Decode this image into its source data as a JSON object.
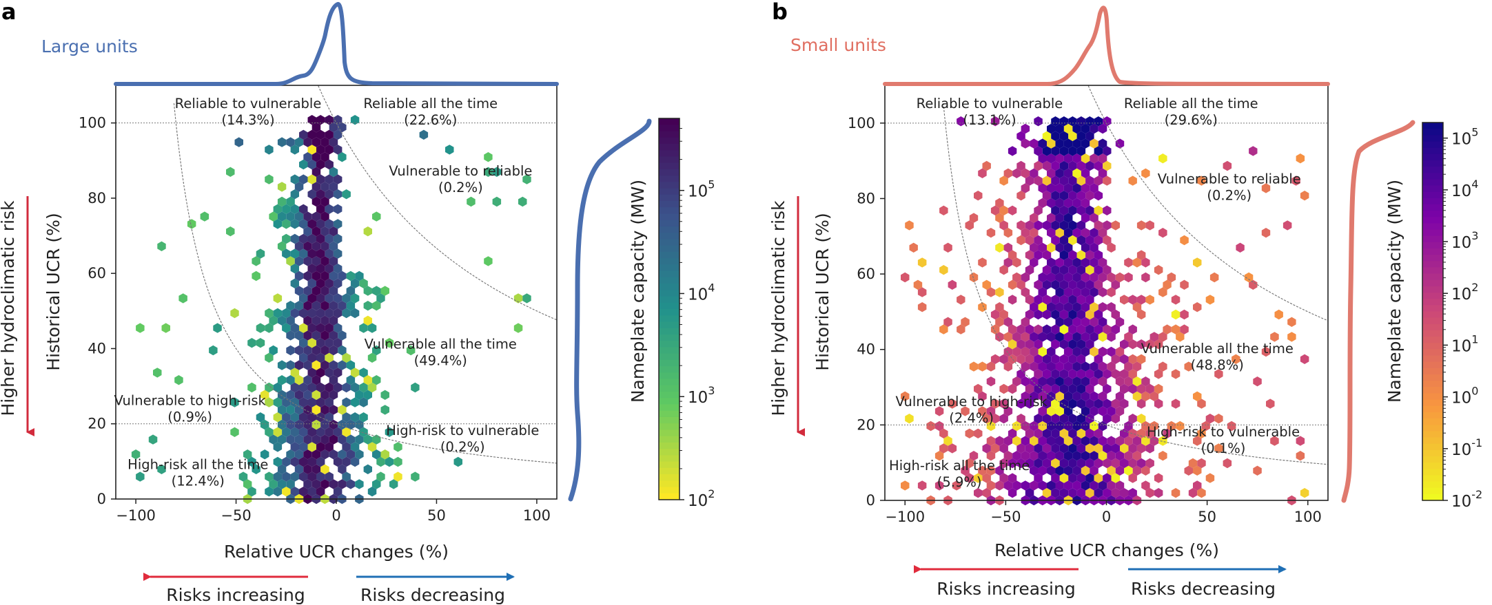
{
  "figure": {
    "panels": [
      {
        "letter": "a",
        "title": "Large units",
        "title_color": "#4a6fb0",
        "kde_color": "#4a6fb0",
        "colormap": "viridis"
      },
      {
        "letter": "b",
        "title": "Small units",
        "title_color": "#e06e60",
        "kde_color": "#e07a6e",
        "colormap": "plasma"
      }
    ],
    "side_label": "Higher hydroclimatic risk",
    "side_color": "#d22b3c",
    "arrow_left_label": "Risks increasing",
    "arrow_left_color": "#e02b3c",
    "arrow_right_label": "Risks decreasing",
    "arrow_right_color": "#1f6fb5"
  },
  "chart_data": [
    {
      "type": "hexbin",
      "title": "Large units",
      "xlabel": "Relative UCR changes (%)",
      "ylabel": "Historical UCR (%)",
      "xlim": [
        -110,
        110
      ],
      "ylim": [
        0,
        110
      ],
      "xticks": [
        -100,
        -50,
        0,
        50,
        100
      ],
      "yticks": [
        0,
        20,
        40,
        60,
        80,
        100
      ],
      "xtick_labels": [
        "−100",
        "−50",
        "0",
        "50",
        "100"
      ],
      "ytick_labels": [
        "0",
        "20",
        "40",
        "60",
        "80",
        "100"
      ],
      "colorbar": {
        "label": "Nameplate capacity (MW)",
        "scale": "log",
        "range": [
          100,
          500000
        ],
        "tick_exponents": [
          2,
          3,
          4,
          5
        ],
        "tick_base": "10"
      },
      "reference_lines": [
        20,
        100
      ],
      "regions": [
        {
          "name": "Reliable to vulnerable",
          "share": "(14.3%)",
          "color": "#c0263a",
          "x": -44,
          "y": 104
        },
        {
          "name": "Reliable all the time",
          "share": "(22.6%)",
          "color": "#222222",
          "x": 47,
          "y": 104
        },
        {
          "name": "Vulnerable to reliable",
          "share": "(0.2%)",
          "color": "#222222",
          "x": 62,
          "y": 86
        },
        {
          "name": "Vulnerable all the time",
          "share": "(49.4%)",
          "color": "#222222",
          "x": 52,
          "y": 40
        },
        {
          "name": "Vulnerable to high-risk",
          "share": "(0.9%)",
          "color": "#c0263a",
          "x": -73,
          "y": 25
        },
        {
          "name": "High-risk to vulnerable",
          "share": "(0.2%)",
          "color": "#222222",
          "x": 63,
          "y": 17
        },
        {
          "name": "High-risk all the time",
          "share": "(12.4%)",
          "color": "#3a55a0",
          "x": -69,
          "y": 8
        }
      ]
    },
    {
      "type": "hexbin",
      "title": "Small units",
      "xlabel": "Relative UCR changes (%)",
      "ylabel": "Historical UCR (%)",
      "xlim": [
        -110,
        110
      ],
      "ylim": [
        0,
        110
      ],
      "xticks": [
        -100,
        -50,
        0,
        50,
        100
      ],
      "yticks": [
        0,
        20,
        40,
        60,
        80,
        100
      ],
      "xtick_labels": [
        "−100",
        "−50",
        "0",
        "50",
        "100"
      ],
      "ytick_labels": [
        "0",
        "20",
        "40",
        "60",
        "80",
        "100"
      ],
      "colorbar": {
        "label": "Nameplate capacity (MW)",
        "scale": "log",
        "range": [
          0.01,
          200000
        ],
        "tick_exponents": [
          "-2",
          "-1",
          "0",
          "1",
          "2",
          "3",
          "4",
          "5"
        ],
        "tick_base": "10"
      },
      "reference_lines": [
        20,
        100
      ],
      "regions": [
        {
          "name": "Reliable to vulnerable",
          "share": "(13.1%)",
          "color": "#c0263a",
          "x": -58,
          "y": 104
        },
        {
          "name": "Reliable all the time",
          "share": "(29.6%)",
          "color": "#222222",
          "x": 42,
          "y": 104
        },
        {
          "name": "Vulnerable to reliable",
          "share": "(0.2%)",
          "color": "#222222",
          "x": 61,
          "y": 84
        },
        {
          "name": "Vulnerable all the time",
          "share": "(48.8%)",
          "color": "#222222",
          "x": 55,
          "y": 39
        },
        {
          "name": "Vulnerable to high-risk",
          "share": "(2.4%)",
          "color": "#c0263a",
          "x": -67,
          "y": 25
        },
        {
          "name": "High-risk to vulnerable",
          "share": "(0.1%)",
          "color": "#222222",
          "x": 58,
          "y": 17
        },
        {
          "name": "High-risk all the time",
          "share": "(5.9%)",
          "color": "#3a55a0",
          "x": -73,
          "y": 8
        }
      ]
    }
  ]
}
